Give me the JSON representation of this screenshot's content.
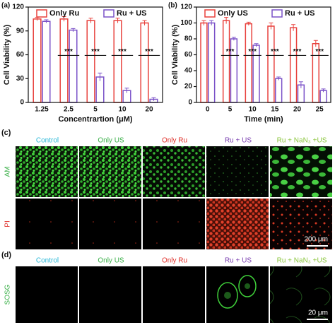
{
  "chart_data": [
    {
      "type": "bar",
      "panel_label": "(a)",
      "ylabel": "Cell Viability (%)",
      "xlabel": "Concentrartion (μM)",
      "categories": [
        "1.25",
        "2.5",
        "5",
        "10",
        "20"
      ],
      "series": [
        {
          "name": "Only Ru",
          "color": "#e8413c",
          "values": [
            105,
            105,
            103,
            103,
            100
          ],
          "errors": [
            2,
            3,
            3,
            3,
            3
          ]
        },
        {
          "name": "Ru + US",
          "color": "#7b52c8",
          "values": [
            102,
            91,
            32,
            15,
            4
          ],
          "errors": [
            2,
            2,
            5,
            3,
            2
          ]
        }
      ],
      "significance": [
        null,
        "***",
        "***",
        "***",
        "***"
      ],
      "ylim": [
        0,
        120
      ],
      "yticks": [
        0,
        30,
        60,
        90,
        120
      ],
      "legend": "top"
    },
    {
      "type": "bar",
      "panel_label": "(b)",
      "ylabel": "Cell Viability (%)",
      "xlabel": "Time (min)",
      "categories": [
        "0",
        "5",
        "10",
        "15",
        "20",
        "25"
      ],
      "series": [
        {
          "name": "Only US",
          "color": "#e8413c",
          "values": [
            100,
            103,
            99,
            96,
            94,
            74
          ],
          "errors": [
            3,
            4,
            2,
            4,
            4,
            4
          ]
        },
        {
          "name": "Ru + US",
          "color": "#7b52c8",
          "values": [
            100,
            80,
            72,
            30,
            22,
            15
          ],
          "errors": [
            3,
            2,
            2,
            2,
            4,
            2
          ]
        }
      ],
      "significance": [
        null,
        "***",
        "***",
        "***",
        "***",
        "***"
      ],
      "ylim": [
        0,
        120
      ],
      "yticks": [
        0,
        20,
        40,
        60,
        80,
        100,
        120
      ],
      "legend": "top"
    }
  ],
  "image_panels": [
    {
      "label": "(c)",
      "columns": [
        "Control",
        "Only US",
        "Only Ru",
        "Ru + US",
        "Ru + NaN₃ +US"
      ],
      "column_colors": [
        "#2ab8d8",
        "#3cb04a",
        "#e0302a",
        "#7a3fb0",
        "#8cc63f"
      ],
      "rows": [
        "AM",
        "PI"
      ],
      "row_colors": [
        "#3cb04a",
        "#e0302a"
      ],
      "scale_bar": "200 μm"
    },
    {
      "label": "(d)",
      "columns": [
        "Control",
        "Only US",
        "Only Ru",
        "Ru + US",
        "Ru + NaN₃ +US"
      ],
      "column_colors": [
        "#2ab8d8",
        "#3cb04a",
        "#e0302a",
        "#7a3fb0",
        "#8cc63f"
      ],
      "rows": [
        "SOSG"
      ],
      "row_colors": [
        "#3cb04a"
      ],
      "scale_bar": "20 μm"
    }
  ]
}
